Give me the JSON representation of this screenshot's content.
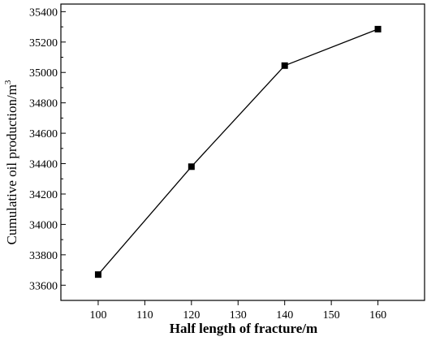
{
  "chart_data": {
    "type": "line",
    "title": "",
    "xlabel": "Half length of fracture/m",
    "ylabel_main": "Cumulative oil production/m",
    "ylabel_sup": "3",
    "x": [
      100,
      120,
      140,
      160
    ],
    "series": [
      {
        "values": [
          33670,
          34380,
          35045,
          35285
        ]
      }
    ],
    "xlim": [
      92,
      170
    ],
    "ylim": [
      33500,
      35450
    ],
    "xticks": [
      100,
      110,
      120,
      130,
      140,
      150,
      160
    ],
    "yticks": [
      33600,
      33800,
      34000,
      34200,
      34400,
      34600,
      34800,
      35000,
      35200,
      35400
    ],
    "grid": false,
    "marker": "square",
    "line_color": "#000000",
    "marker_color": "#000000"
  }
}
